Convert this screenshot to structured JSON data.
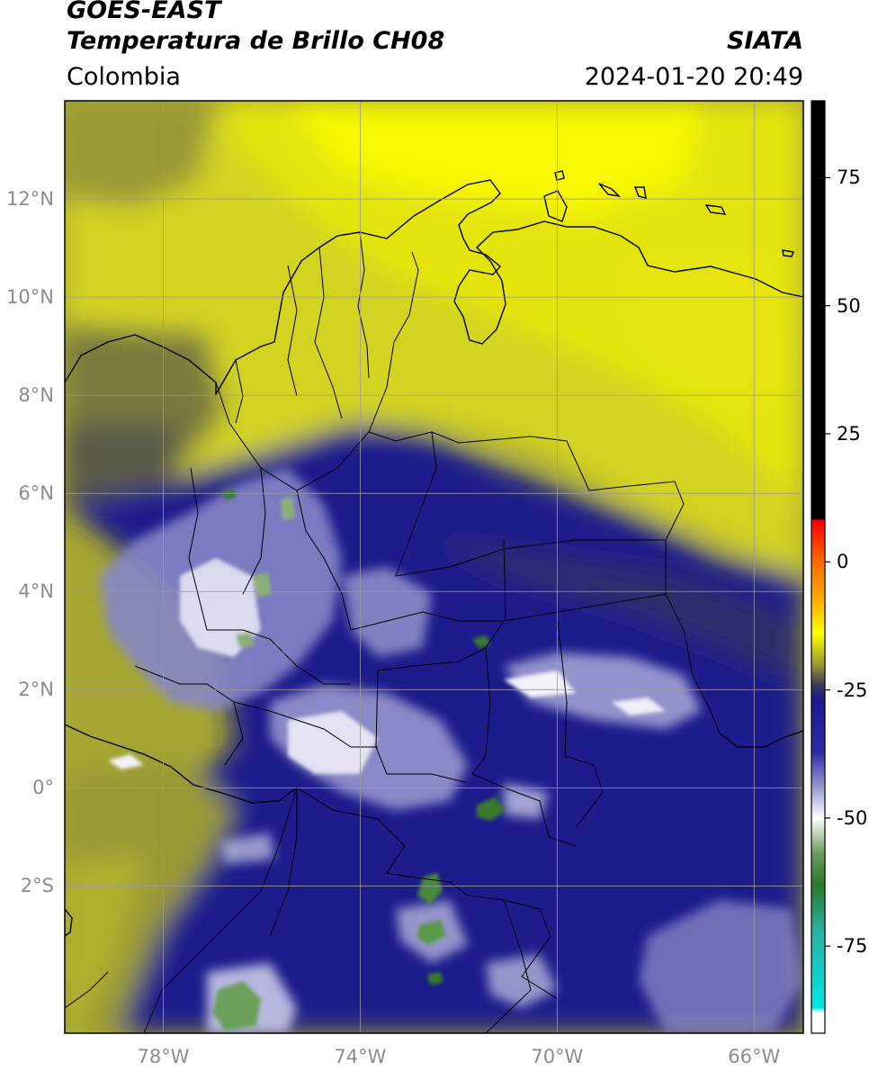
{
  "header": {
    "satellite": "GOES-EAST",
    "product": "Temperatura de Brillo CH08",
    "organization": "SIATA",
    "region": "Colombia",
    "timestamp": "2024-01-20 20:49"
  },
  "map": {
    "lat_range": [
      -5,
      14
    ],
    "lon_range": [
      -80,
      -65
    ],
    "lat_ticks": [
      {
        "value": 12,
        "label": "12°N"
      },
      {
        "value": 10,
        "label": "10°N"
      },
      {
        "value": 8,
        "label": "8°N"
      },
      {
        "value": 6,
        "label": "6°N"
      },
      {
        "value": 4,
        "label": "4°N"
      },
      {
        "value": 2,
        "label": "2°N"
      },
      {
        "value": 0,
        "label": "0°"
      },
      {
        "value": -2,
        "label": "2°S"
      }
    ],
    "lon_ticks": [
      {
        "value": -78,
        "label": "78°W"
      },
      {
        "value": -74,
        "label": "74°W"
      },
      {
        "value": -70,
        "label": "70°W"
      },
      {
        "value": -66,
        "label": "66°W"
      }
    ],
    "grid": true,
    "gridline_color": "#9a9a9a",
    "background_color": "#a6a632"
  },
  "colorbar": {
    "vmin": -92,
    "vmax": 90,
    "ticks": [
      {
        "value": 75,
        "label": "75"
      },
      {
        "value": 50,
        "label": "50"
      },
      {
        "value": 25,
        "label": "25"
      },
      {
        "value": 0,
        "label": "0"
      },
      {
        "value": -25,
        "label": "-25"
      },
      {
        "value": -50,
        "label": "-50"
      },
      {
        "value": -75,
        "label": "-75"
      }
    ],
    "stops": [
      {
        "value": 90,
        "color": "#000000"
      },
      {
        "value": 8.5,
        "color": "#000000"
      },
      {
        "value": 8,
        "color": "#ff0000"
      },
      {
        "value": 0,
        "color": "#ff6a00"
      },
      {
        "value": -8,
        "color": "#ffb300"
      },
      {
        "value": -14,
        "color": "#ffff00"
      },
      {
        "value": -20,
        "color": "#9a9a30"
      },
      {
        "value": -24,
        "color": "#3a3a5a"
      },
      {
        "value": -27,
        "color": "#1a1a90"
      },
      {
        "value": -37,
        "color": "#2a2aa8"
      },
      {
        "value": -44,
        "color": "#9a9ad0"
      },
      {
        "value": -50,
        "color": "#ffffff"
      },
      {
        "value": -57,
        "color": "#6a9a5a"
      },
      {
        "value": -63,
        "color": "#2a7a2a"
      },
      {
        "value": -72,
        "color": "#2ab0a0"
      },
      {
        "value": -87,
        "color": "#00e8e8"
      },
      {
        "value": -88,
        "color": "#ffffff"
      },
      {
        "value": -92,
        "color": "#ffffff"
      }
    ]
  }
}
